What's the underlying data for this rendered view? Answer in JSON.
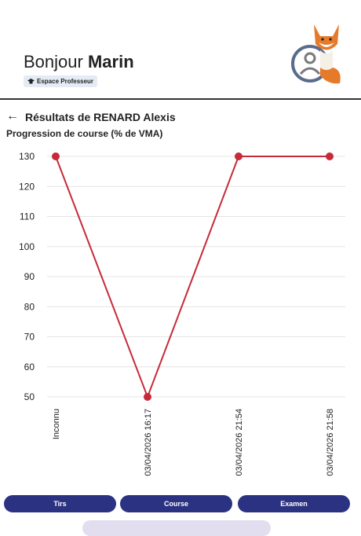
{
  "header": {
    "greeting": "Bonjour",
    "name": "Marin",
    "badge": "Espace Professeur"
  },
  "page_title": "Résultats de RENARD Alexis",
  "chart_data": {
    "type": "line",
    "title": "Progression de course (% de VMA)",
    "categories": [
      "Inconnu",
      "03/04/2026 16:17",
      "03/04/2026 21:54",
      "03/04/2026 21:58"
    ],
    "series": [
      {
        "name": "Progression",
        "color": "#c62a3a",
        "values": [
          130,
          50,
          130,
          130
        ]
      }
    ],
    "ylim": [
      50,
      130
    ],
    "yticks": [
      50,
      60,
      70,
      80,
      90,
      100,
      110,
      120,
      130
    ],
    "grid": true
  },
  "buttons": [
    "Tirs",
    "Course",
    "Examen"
  ]
}
